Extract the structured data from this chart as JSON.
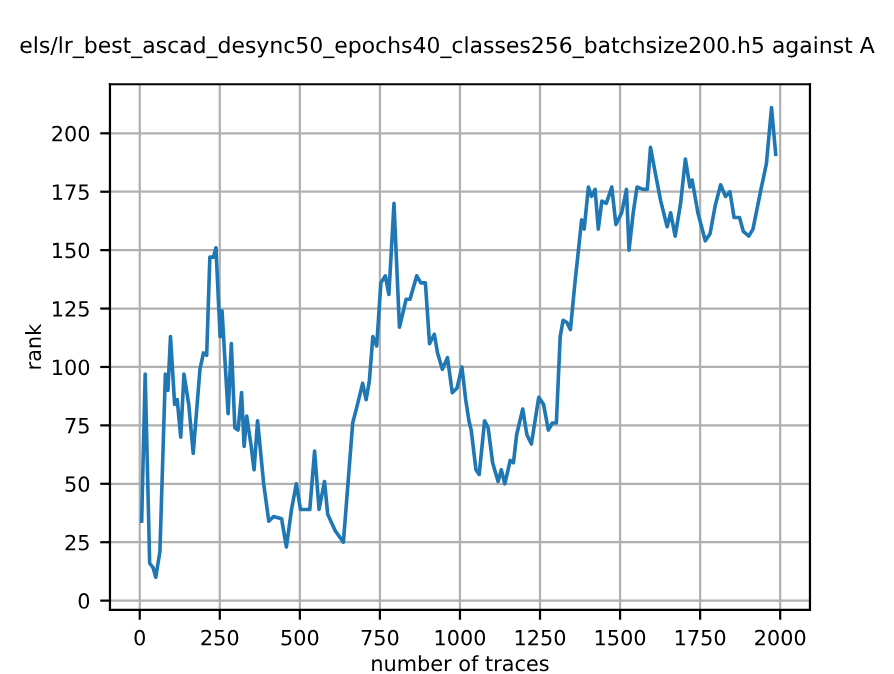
{
  "chart_data": {
    "type": "line",
    "title": "els/lr_best_ascad_desync50_epochs40_classes256_batchsize200.h5 against A",
    "xlabel": "number of traces",
    "ylabel": "rank",
    "x": [
      6,
      17,
      31,
      42,
      50,
      63,
      80,
      88,
      96,
      109,
      117,
      128,
      138,
      153,
      167,
      188,
      199,
      209,
      219,
      230,
      238,
      251,
      257,
      276,
      286,
      297,
      307,
      318,
      326,
      334,
      347,
      357,
      368,
      387,
      403,
      418,
      443,
      458,
      474,
      489,
      502,
      531,
      546,
      560,
      577,
      587,
      610,
      636,
      665,
      680,
      696,
      707,
      717,
      728,
      740,
      753,
      767,
      778,
      794,
      811,
      832,
      844,
      865,
      878,
      892,
      905,
      920,
      930,
      945,
      961,
      976,
      991,
      1006,
      1018,
      1028,
      1035,
      1050,
      1060,
      1077,
      1088,
      1102,
      1119,
      1129,
      1140,
      1157,
      1167,
      1177,
      1196,
      1209,
      1223,
      1246,
      1261,
      1276,
      1288,
      1301,
      1313,
      1322,
      1334,
      1345,
      1359,
      1370,
      1380,
      1388,
      1401,
      1411,
      1422,
      1432,
      1443,
      1457,
      1474,
      1487,
      1505,
      1520,
      1528,
      1541,
      1553,
      1572,
      1585,
      1595,
      1610,
      1627,
      1647,
      1658,
      1672,
      1689,
      1704,
      1718,
      1725,
      1743,
      1766,
      1781,
      1797,
      1814,
      1829,
      1843,
      1856,
      1873,
      1885,
      1902,
      1915,
      1940,
      1957,
      1973,
      1986
    ],
    "series": [
      {
        "color": "#1f77b4",
        "values": [
          34,
          97,
          16,
          14,
          10,
          21,
          97,
          90,
          113,
          84,
          86,
          70,
          97,
          84,
          63,
          99,
          106,
          105,
          147,
          147,
          151,
          113,
          124,
          80,
          110,
          74,
          73,
          89,
          66,
          79,
          67,
          56,
          77,
          50,
          34,
          36,
          35,
          23,
          39,
          50,
          39,
          39,
          64,
          39,
          51,
          37,
          30,
          25,
          76,
          84,
          93,
          86,
          94,
          113,
          109,
          136,
          139,
          131,
          170,
          117,
          129,
          129,
          139,
          136,
          136,
          110,
          114,
          106,
          99,
          104,
          89,
          91,
          100,
          86,
          77,
          73,
          56,
          54,
          77,
          74,
          59,
          51,
          56,
          50,
          60,
          59,
          71,
          82,
          71,
          67,
          87,
          84,
          73,
          76,
          76,
          113,
          120,
          119,
          116,
          136,
          150,
          163,
          159,
          177,
          173,
          176,
          159,
          171,
          170,
          177,
          161,
          166,
          176,
          150,
          166,
          177,
          176,
          176,
          194,
          183,
          171,
          160,
          166,
          156,
          170,
          189,
          177,
          180,
          166,
          154,
          157,
          169,
          178,
          173,
          175,
          164,
          164,
          158,
          156,
          159,
          176,
          187,
          211,
          191
        ]
      }
    ],
    "xlim": [
      -93,
      2093
    ],
    "ylim": [
      -4,
      221
    ],
    "xticks": [
      0,
      250,
      500,
      750,
      1000,
      1250,
      1500,
      1750,
      2000
    ],
    "yticks": [
      0,
      25,
      50,
      75,
      100,
      125,
      150,
      175,
      200
    ],
    "grid": true
  }
}
